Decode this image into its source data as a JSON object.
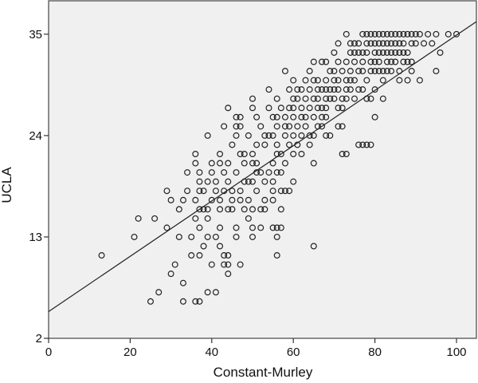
{
  "chart_data": {
    "type": "scatter",
    "title": "",
    "xlabel": "Constant-Murley",
    "ylabel": "UCLA",
    "xlim": [
      0,
      105
    ],
    "ylim": [
      2,
      38
    ],
    "x_ticks": [
      0,
      20,
      40,
      60,
      80,
      100
    ],
    "y_ticks": [
      2,
      13,
      24,
      35
    ],
    "grid": false,
    "legend": null,
    "plot_background": "#f0f0f0",
    "marker": "open-circle",
    "regression_line": {
      "intercept": 4.9,
      "slope": 0.3,
      "x_start": 0,
      "x_end": 105
    },
    "points": [
      [
        13,
        11
      ],
      [
        21,
        13
      ],
      [
        22,
        15
      ],
      [
        26,
        15
      ],
      [
        25,
        6
      ],
      [
        27,
        7
      ],
      [
        29,
        14
      ],
      [
        29,
        18
      ],
      [
        30,
        17
      ],
      [
        30,
        9
      ],
      [
        31,
        10
      ],
      [
        32,
        13
      ],
      [
        32,
        16
      ],
      [
        33,
        6
      ],
      [
        33,
        8
      ],
      [
        33,
        17
      ],
      [
        34,
        18
      ],
      [
        34,
        20
      ],
      [
        35,
        13
      ],
      [
        35,
        11
      ],
      [
        36,
        6
      ],
      [
        36,
        15
      ],
      [
        36,
        17
      ],
      [
        36,
        21
      ],
      [
        36,
        22
      ],
      [
        37,
        6
      ],
      [
        37,
        11
      ],
      [
        37,
        14
      ],
      [
        37,
        16
      ],
      [
        37,
        18
      ],
      [
        37,
        19
      ],
      [
        37,
        20
      ],
      [
        38,
        16
      ],
      [
        38,
        12
      ],
      [
        38,
        18
      ],
      [
        39,
        7
      ],
      [
        39,
        13
      ],
      [
        39,
        15
      ],
      [
        39,
        16
      ],
      [
        39,
        19
      ],
      [
        39,
        24
      ],
      [
        40,
        10
      ],
      [
        40,
        17
      ],
      [
        40,
        20
      ],
      [
        40,
        21
      ],
      [
        41,
        13
      ],
      [
        41,
        7
      ],
      [
        41,
        18
      ],
      [
        41,
        19
      ],
      [
        42,
        12
      ],
      [
        42,
        14
      ],
      [
        42,
        16
      ],
      [
        42,
        17
      ],
      [
        42,
        21
      ],
      [
        42,
        22
      ],
      [
        43,
        11
      ],
      [
        43,
        10
      ],
      [
        43,
        18
      ],
      [
        43,
        20
      ],
      [
        43,
        25
      ],
      [
        44,
        9
      ],
      [
        44,
        10
      ],
      [
        44,
        11
      ],
      [
        44,
        16
      ],
      [
        44,
        19
      ],
      [
        44,
        21
      ],
      [
        44,
        27
      ],
      [
        45,
        16
      ],
      [
        45,
        17
      ],
      [
        45,
        18
      ],
      [
        45,
        23
      ],
      [
        46,
        13
      ],
      [
        46,
        14
      ],
      [
        46,
        20
      ],
      [
        46,
        24
      ],
      [
        46,
        26
      ],
      [
        46,
        25
      ],
      [
        47,
        10
      ],
      [
        47,
        17
      ],
      [
        47,
        18
      ],
      [
        47,
        22
      ],
      [
        47,
        25
      ],
      [
        47,
        26
      ],
      [
        48,
        16
      ],
      [
        48,
        19
      ],
      [
        48,
        21
      ],
      [
        48,
        22
      ],
      [
        49,
        15
      ],
      [
        49,
        17
      ],
      [
        49,
        19
      ],
      [
        49,
        24
      ],
      [
        50,
        13
      ],
      [
        50,
        14
      ],
      [
        50,
        16
      ],
      [
        50,
        19
      ],
      [
        50,
        21
      ],
      [
        50,
        22
      ],
      [
        50,
        27
      ],
      [
        50,
        28
      ],
      [
        51,
        18
      ],
      [
        51,
        20
      ],
      [
        51,
        21
      ],
      [
        51,
        23
      ],
      [
        51,
        26
      ],
      [
        52,
        14
      ],
      [
        52,
        16
      ],
      [
        52,
        20
      ],
      [
        52,
        25
      ],
      [
        53,
        16
      ],
      [
        53,
        17
      ],
      [
        53,
        19
      ],
      [
        53,
        23
      ],
      [
        53,
        24
      ],
      [
        54,
        20
      ],
      [
        54,
        24
      ],
      [
        54,
        27
      ],
      [
        54,
        29
      ],
      [
        55,
        14
      ],
      [
        55,
        17
      ],
      [
        55,
        18
      ],
      [
        55,
        19
      ],
      [
        55,
        21
      ],
      [
        55,
        24
      ],
      [
        55,
        26
      ],
      [
        56,
        11
      ],
      [
        56,
        13
      ],
      [
        56,
        14
      ],
      [
        56,
        20
      ],
      [
        56,
        22
      ],
      [
        56,
        23
      ],
      [
        56,
        25
      ],
      [
        56,
        26
      ],
      [
        56,
        28
      ],
      [
        57,
        14
      ],
      [
        57,
        16
      ],
      [
        57,
        18
      ],
      [
        57,
        20
      ],
      [
        57,
        22
      ],
      [
        57,
        27
      ],
      [
        58,
        18
      ],
      [
        58,
        21
      ],
      [
        58,
        24
      ],
      [
        58,
        25
      ],
      [
        58,
        26
      ],
      [
        58,
        31
      ],
      [
        59,
        18
      ],
      [
        59,
        23
      ],
      [
        59,
        25
      ],
      [
        59,
        27
      ],
      [
        59,
        29
      ],
      [
        60,
        19
      ],
      [
        60,
        22
      ],
      [
        60,
        24
      ],
      [
        60,
        26
      ],
      [
        60,
        27
      ],
      [
        60,
        28
      ],
      [
        60,
        30
      ],
      [
        61,
        23
      ],
      [
        61,
        25
      ],
      [
        61,
        28
      ],
      [
        61,
        29
      ],
      [
        62,
        22
      ],
      [
        62,
        24
      ],
      [
        62,
        26
      ],
      [
        62,
        27
      ],
      [
        62,
        29
      ],
      [
        63,
        25
      ],
      [
        63,
        26
      ],
      [
        63,
        28
      ],
      [
        63,
        30
      ],
      [
        64,
        23
      ],
      [
        64,
        24
      ],
      [
        64,
        27
      ],
      [
        64,
        29
      ],
      [
        64,
        31
      ],
      [
        65,
        12
      ],
      [
        65,
        21
      ],
      [
        65,
        24
      ],
      [
        65,
        26
      ],
      [
        65,
        28
      ],
      [
        65,
        30
      ],
      [
        65,
        32
      ],
      [
        66,
        25
      ],
      [
        66,
        27
      ],
      [
        66,
        28
      ],
      [
        66,
        29
      ],
      [
        66,
        30
      ],
      [
        67,
        25
      ],
      [
        67,
        26
      ],
      [
        67,
        27
      ],
      [
        67,
        29
      ],
      [
        67,
        32
      ],
      [
        68,
        24
      ],
      [
        68,
        26
      ],
      [
        68,
        27
      ],
      [
        68,
        28
      ],
      [
        68,
        29
      ],
      [
        68,
        30
      ],
      [
        68,
        32
      ],
      [
        69,
        24
      ],
      [
        69,
        28
      ],
      [
        69,
        29
      ],
      [
        69,
        31
      ],
      [
        70,
        28
      ],
      [
        70,
        29
      ],
      [
        70,
        30
      ],
      [
        70,
        31
      ],
      [
        70,
        33
      ],
      [
        71,
        25
      ],
      [
        71,
        27
      ],
      [
        71,
        29
      ],
      [
        71,
        30
      ],
      [
        71,
        32
      ],
      [
        71,
        34
      ],
      [
        72,
        22
      ],
      [
        72,
        25
      ],
      [
        72,
        27
      ],
      [
        72,
        28
      ],
      [
        72,
        31
      ],
      [
        73,
        22
      ],
      [
        73,
        28
      ],
      [
        73,
        29
      ],
      [
        73,
        30
      ],
      [
        73,
        32
      ],
      [
        73,
        35
      ],
      [
        74,
        29
      ],
      [
        74,
        30
      ],
      [
        74,
        31
      ],
      [
        74,
        33
      ],
      [
        74,
        34
      ],
      [
        75,
        28
      ],
      [
        75,
        30
      ],
      [
        75,
        32
      ],
      [
        75,
        33
      ],
      [
        75,
        34
      ],
      [
        76,
        23
      ],
      [
        76,
        29
      ],
      [
        76,
        31
      ],
      [
        76,
        33
      ],
      [
        76,
        34
      ],
      [
        77,
        23
      ],
      [
        77,
        29
      ],
      [
        77,
        31
      ],
      [
        77,
        32
      ],
      [
        77,
        33
      ],
      [
        77,
        35
      ],
      [
        78,
        23
      ],
      [
        78,
        28
      ],
      [
        78,
        30
      ],
      [
        78,
        33
      ],
      [
        78,
        34
      ],
      [
        78,
        35
      ],
      [
        79,
        23
      ],
      [
        79,
        28
      ],
      [
        79,
        31
      ],
      [
        79,
        32
      ],
      [
        79,
        34
      ],
      [
        79,
        35
      ],
      [
        80,
        26
      ],
      [
        80,
        29
      ],
      [
        80,
        31
      ],
      [
        80,
        32
      ],
      [
        80,
        33
      ],
      [
        80,
        34
      ],
      [
        80,
        35
      ],
      [
        81,
        31
      ],
      [
        81,
        32
      ],
      [
        81,
        33
      ],
      [
        81,
        34
      ],
      [
        81,
        35
      ],
      [
        82,
        28
      ],
      [
        82,
        30
      ],
      [
        82,
        31
      ],
      [
        82,
        33
      ],
      [
        82,
        34
      ],
      [
        82,
        35
      ],
      [
        83,
        31
      ],
      [
        83,
        32
      ],
      [
        83,
        33
      ],
      [
        83,
        34
      ],
      [
        83,
        35
      ],
      [
        84,
        31
      ],
      [
        84,
        32
      ],
      [
        84,
        33
      ],
      [
        84,
        34
      ],
      [
        84,
        35
      ],
      [
        85,
        32
      ],
      [
        85,
        33
      ],
      [
        85,
        34
      ],
      [
        85,
        35
      ],
      [
        86,
        30
      ],
      [
        86,
        31
      ],
      [
        86,
        33
      ],
      [
        86,
        34
      ],
      [
        86,
        35
      ],
      [
        87,
        32
      ],
      [
        87,
        33
      ],
      [
        87,
        34
      ],
      [
        87,
        35
      ],
      [
        88,
        30
      ],
      [
        88,
        32
      ],
      [
        88,
        33
      ],
      [
        88,
        35
      ],
      [
        89,
        31
      ],
      [
        89,
        32
      ],
      [
        89,
        34
      ],
      [
        89,
        35
      ],
      [
        90,
        34
      ],
      [
        90,
        35
      ],
      [
        91,
        30
      ],
      [
        91,
        35
      ],
      [
        92,
        34
      ],
      [
        93,
        35
      ],
      [
        94,
        34
      ],
      [
        95,
        31
      ],
      [
        95,
        35
      ],
      [
        96,
        33
      ],
      [
        98,
        35
      ],
      [
        100,
        35
      ]
    ]
  }
}
